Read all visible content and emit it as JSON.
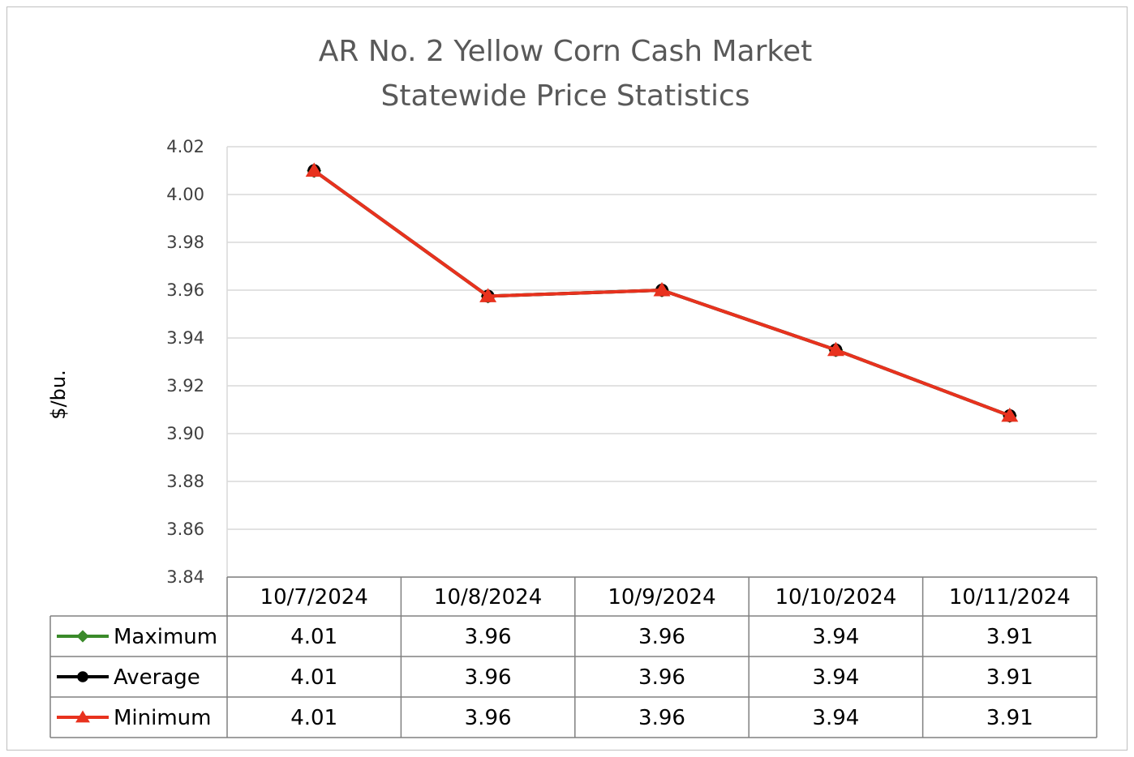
{
  "chart_data": {
    "type": "line",
    "title": [
      "AR No. 2 Yellow Corn Cash Market",
      "Statewide Price Statistics"
    ],
    "ylabel": "$/bu.",
    "xlabel": "",
    "ylim": [
      3.84,
      4.02
    ],
    "yticks": [
      "4.02",
      "4.00",
      "3.98",
      "3.96",
      "3.94",
      "3.92",
      "3.90",
      "3.88",
      "3.86",
      "3.84"
    ],
    "grid": true,
    "legend": "data-table",
    "categories": [
      "10/7/2024",
      "10/8/2024",
      "10/9/2024",
      "10/10/2024",
      "10/11/2024"
    ],
    "series": [
      {
        "name": "Maximum",
        "color": "#3a8a2a",
        "marker": "diamond",
        "values": [
          4.01,
          3.9575,
          3.96,
          3.935,
          3.9075
        ],
        "labels": [
          "4.01",
          "3.96",
          "3.96",
          "3.94",
          "3.91"
        ]
      },
      {
        "name": "Average",
        "color": "#000000",
        "marker": "circle",
        "values": [
          4.01,
          3.9575,
          3.96,
          3.935,
          3.9075
        ],
        "labels": [
          "4.01",
          "3.96",
          "3.96",
          "3.94",
          "3.91"
        ]
      },
      {
        "name": "Minimum",
        "color": "#e8321e",
        "marker": "triangle",
        "values": [
          4.01,
          3.9575,
          3.96,
          3.935,
          3.9075
        ],
        "labels": [
          "4.01",
          "3.96",
          "3.96",
          "3.94",
          "3.91"
        ]
      }
    ]
  }
}
